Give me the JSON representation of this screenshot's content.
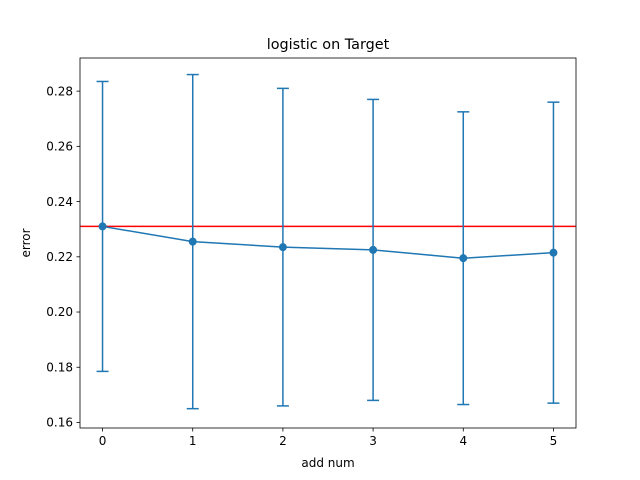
{
  "chart_data": {
    "type": "line",
    "title": "logistic on Target",
    "xlabel": "add num",
    "ylabel": "error",
    "xlim": [
      -0.25,
      5.25
    ],
    "ylim": [
      0.158,
      0.292
    ],
    "x_ticks": [
      0,
      1,
      2,
      3,
      4,
      5
    ],
    "y_ticks": [
      0.16,
      0.18,
      0.2,
      0.22,
      0.24,
      0.26,
      0.28
    ],
    "y_tick_labels": [
      "0.16",
      "0.18",
      "0.20",
      "0.22",
      "0.24",
      "0.26",
      "0.28"
    ],
    "grid": false,
    "legend": "none",
    "series": [
      {
        "x": [
          0,
          1,
          2,
          3,
          4,
          5
        ],
        "values": [
          0.231,
          0.2255,
          0.2235,
          0.2225,
          0.2195,
          0.2215
        ],
        "err_lower": [
          0.1785,
          0.165,
          0.166,
          0.168,
          0.1665,
          0.167
        ],
        "err_upper": [
          0.2835,
          0.286,
          0.281,
          0.277,
          0.2725,
          0.276
        ],
        "color": "#1f77b4",
        "marker": "circle"
      }
    ],
    "hlines": [
      {
        "y": 0.231,
        "color": "#ff0000"
      }
    ]
  }
}
